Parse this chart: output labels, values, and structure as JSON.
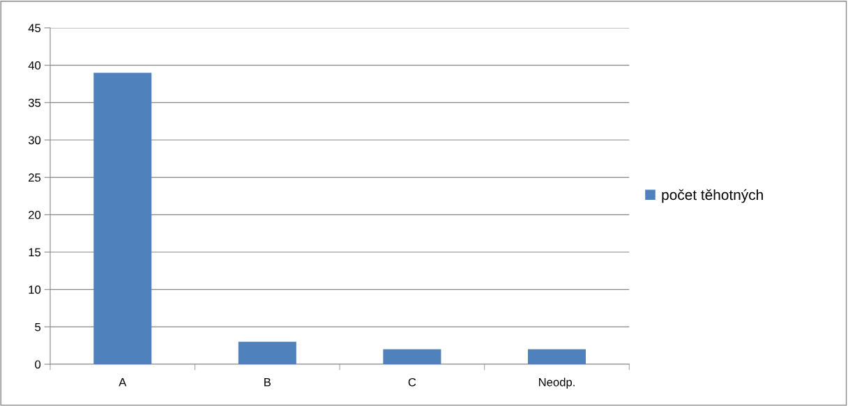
{
  "chart_data": {
    "type": "bar",
    "categories": [
      "A",
      "B",
      "C",
      "Neodp."
    ],
    "series": [
      {
        "name": "počet těhotných",
        "color": "#4f81bd",
        "values": [
          39,
          3,
          2,
          2
        ]
      }
    ],
    "ylim": [
      0,
      45
    ],
    "yticks": [
      0,
      5,
      10,
      15,
      20,
      25,
      30,
      35,
      40,
      45
    ],
    "grid": "y",
    "legend": "right"
  }
}
